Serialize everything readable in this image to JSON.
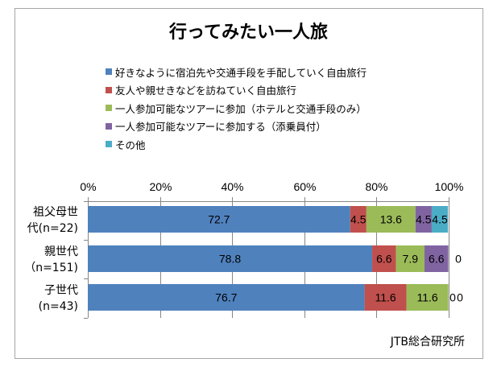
{
  "chart_data": {
    "type": "bar",
    "orientation": "horizontal",
    "stacked": "percent",
    "title": "行ってみたい一人旅",
    "categories": [
      "祖父母世代(n=22)",
      "親世代（n=151)",
      "子世代(n=43)"
    ],
    "category_lines": [
      [
        "祖父母世",
        "代(n=22)"
      ],
      [
        "親世代",
        "（n=151)"
      ],
      [
        "子世代",
        "(n=43)"
      ]
    ],
    "series": [
      {
        "name": "好きなように宿泊先や交通手段を手配していく自由旅行",
        "color": "#4f81bd",
        "values": [
          72.7,
          78.8,
          76.7
        ]
      },
      {
        "name": "友人や親せきなどを訪ねていく自由旅行",
        "color": "#c0504d",
        "values": [
          4.5,
          6.6,
          11.6
        ]
      },
      {
        "name": "一人参加可能なツアーに参加（ホテルと交通手段のみ）",
        "color": "#9bbb59",
        "values": [
          13.6,
          7.9,
          11.6
        ]
      },
      {
        "name": "一人参加可能なツアーに参加する（添乗員付）",
        "color": "#8064a2",
        "values": [
          4.5,
          6.6,
          0
        ]
      },
      {
        "name": "その他",
        "color": "#4bacc6",
        "values": [
          4.5,
          0,
          0
        ]
      }
    ],
    "data_labels": [
      [
        "72.7",
        "4.5",
        "13.6",
        "4.5",
        "4.5"
      ],
      [
        "78.8",
        "6.6",
        "7.9",
        "6.6",
        "0"
      ],
      [
        "76.7",
        "11.6",
        "11.6",
        "0",
        "0"
      ]
    ],
    "xticks": [
      "0%",
      "20%",
      "40%",
      "60%",
      "80%",
      "100%"
    ],
    "xlim": [
      0,
      100
    ],
    "xlabel": "",
    "ylabel": "",
    "legend_position": "top",
    "grid": true,
    "source": "JTB総合研究所"
  }
}
